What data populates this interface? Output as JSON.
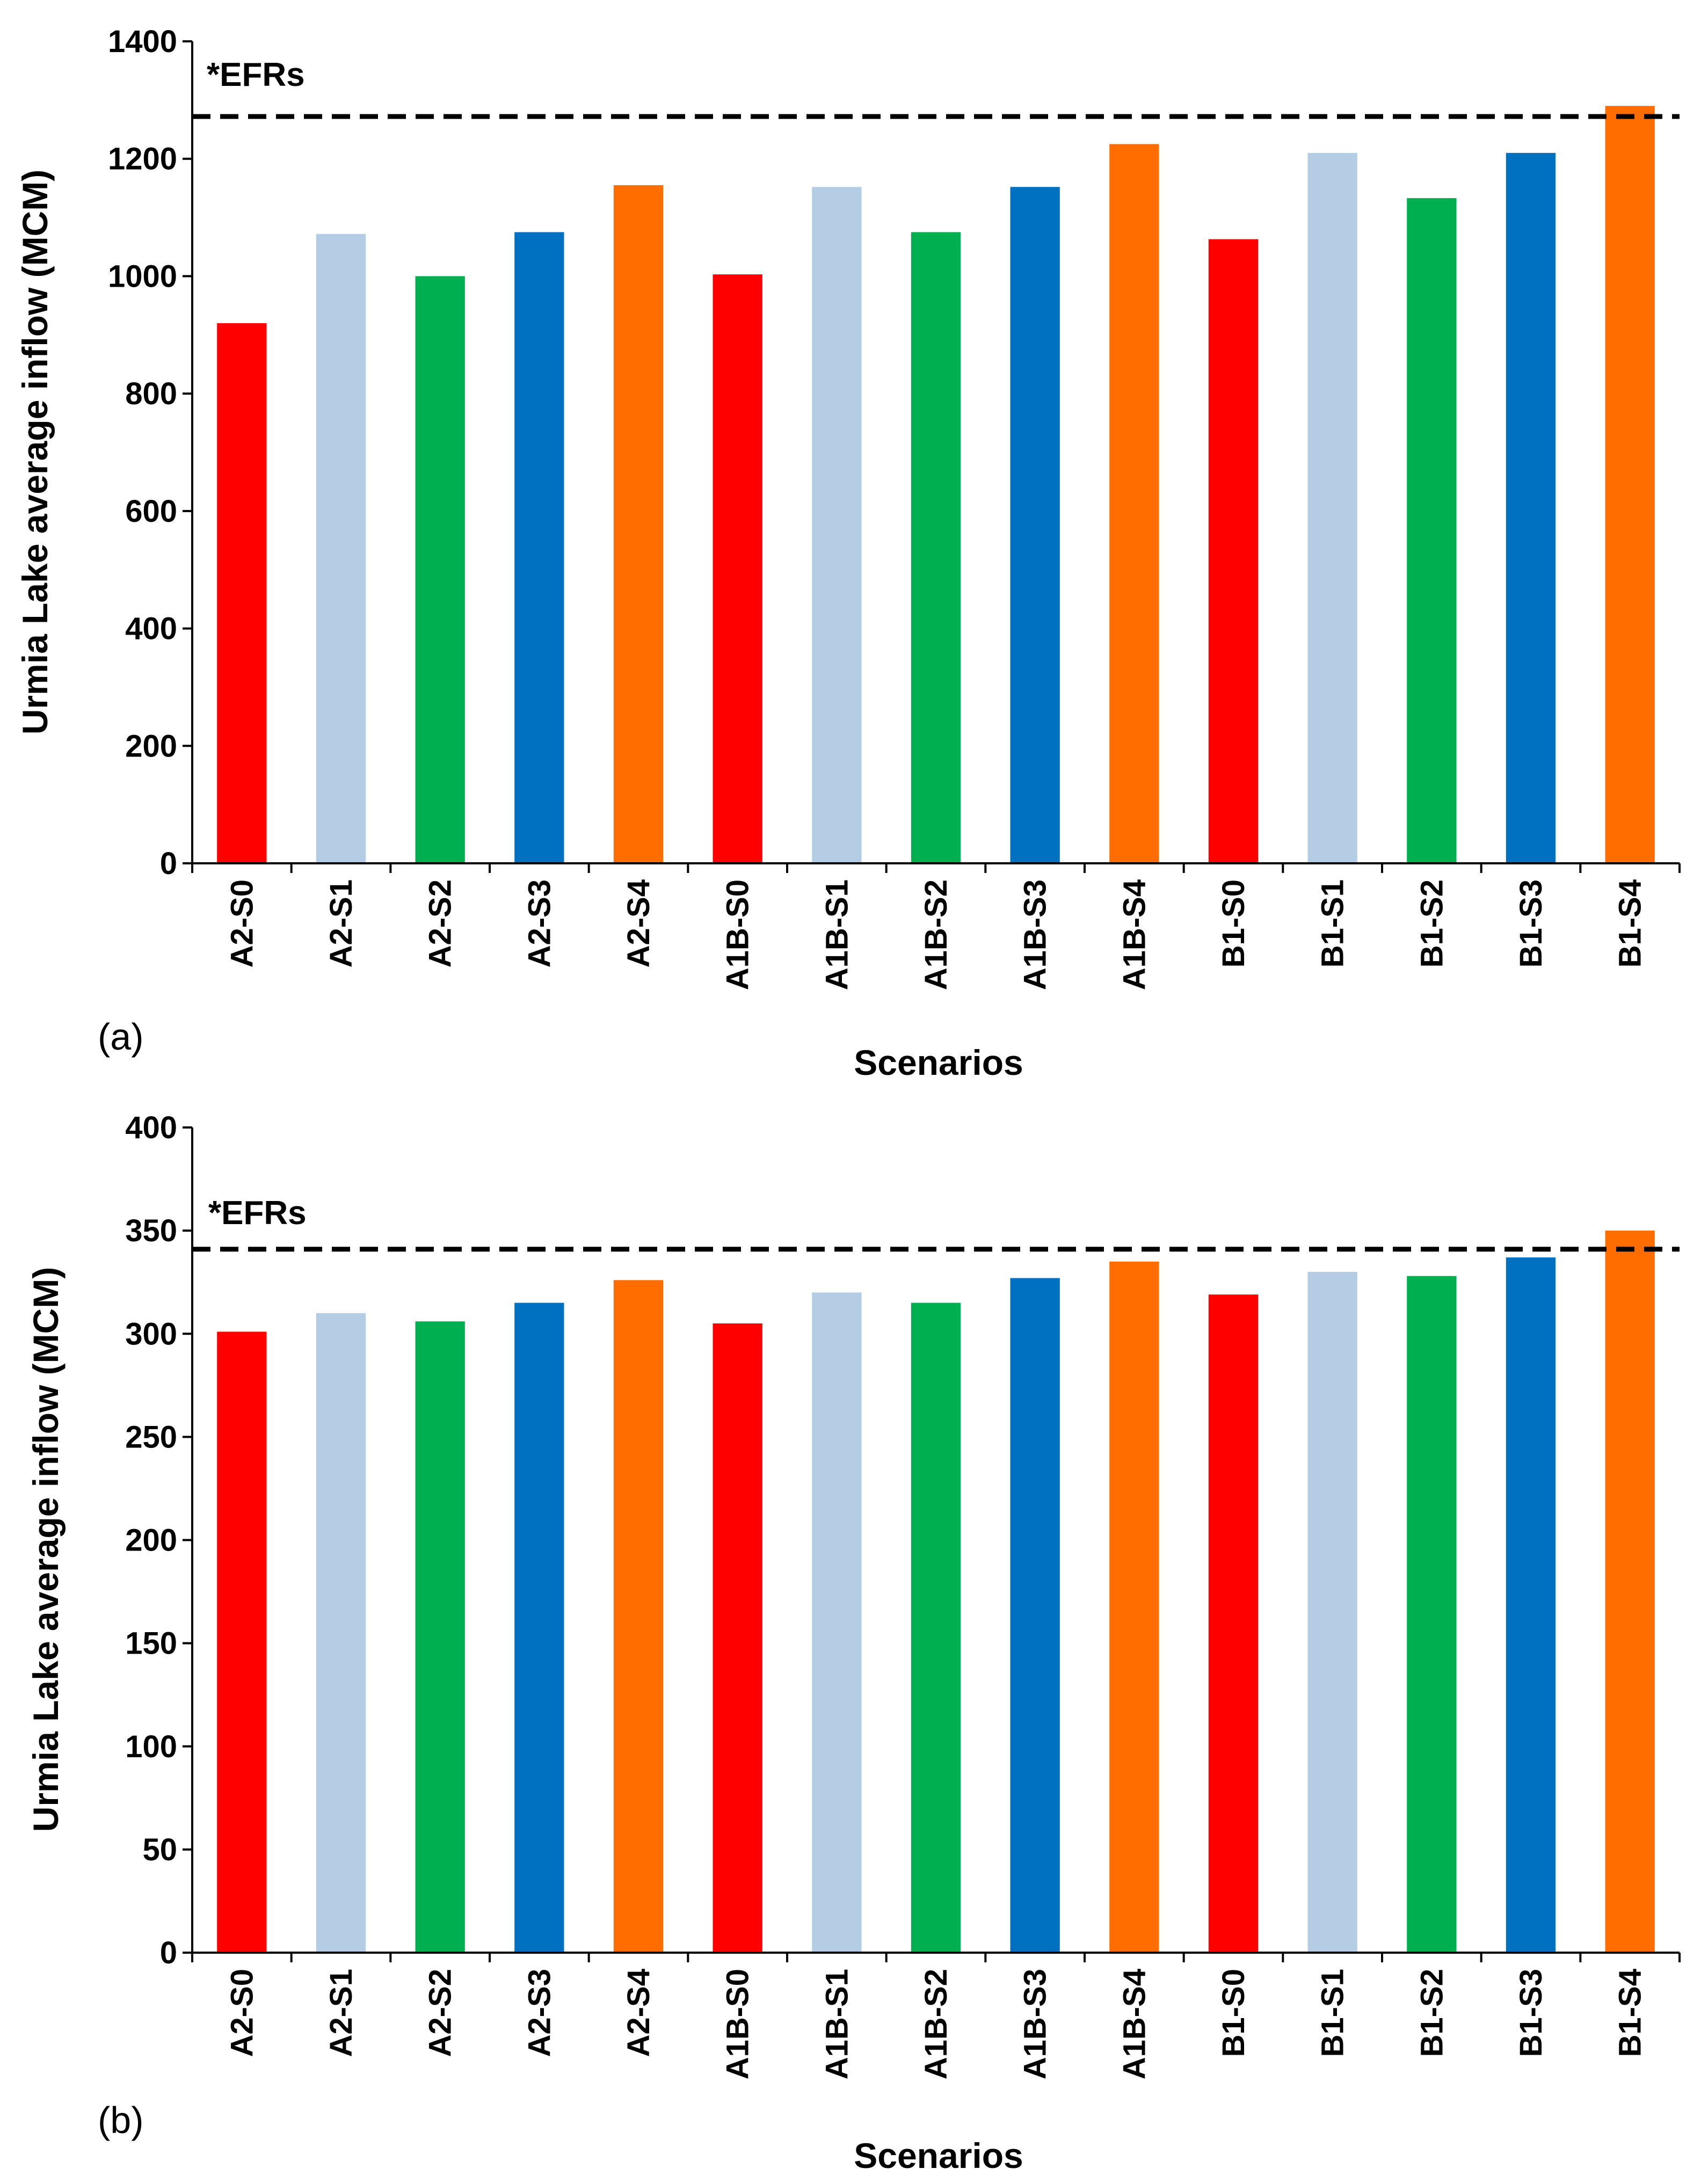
{
  "colors": {
    "S0": "#ff0000",
    "S1": "#b4cde4",
    "S2": "#00b050",
    "S3": "#0070c0",
    "S4": "#ff6d00",
    "efr_line": "#000000"
  },
  "chart_data": [
    {
      "type": "bar",
      "panel_label": "(a)",
      "title": "",
      "xlabel": "Scenarios",
      "ylabel": "Urmia Lake average inflow (MCM)",
      "ylim": [
        0,
        1400
      ],
      "yticks": [
        0,
        200,
        400,
        600,
        800,
        1000,
        1200,
        1400
      ],
      "categories": [
        "A2-S0",
        "A2-S1",
        "A2-S2",
        "A2-S3",
        "A2-S4",
        "A1B-S0",
        "A1B-S1",
        "A1B-S2",
        "A1B-S3",
        "A1B-S4",
        "B1-S0",
        "B1-S1",
        "B1-S2",
        "B1-S3",
        "B1-S4"
      ],
      "values": [
        920,
        1072,
        1000,
        1075,
        1155,
        1003,
        1152,
        1075,
        1152,
        1225,
        1063,
        1210,
        1133,
        1210,
        1290
      ],
      "reference_line": {
        "label": "*EFRs",
        "value": 1272,
        "style": "dashed"
      },
      "grid": false
    },
    {
      "type": "bar",
      "panel_label": "(b)",
      "title": "",
      "xlabel": "Scenarios",
      "ylabel": "Urmia Lake average inflow (MCM)",
      "ylim": [
        0,
        400
      ],
      "yticks": [
        0,
        50,
        100,
        150,
        200,
        250,
        300,
        350,
        400
      ],
      "categories": [
        "A2-S0",
        "A2-S1",
        "A2-S2",
        "A2-S3",
        "A2-S4",
        "A1B-S0",
        "A1B-S1",
        "A1B-S2",
        "A1B-S3",
        "A1B-S4",
        "B1-S0",
        "B1-S1",
        "B1-S2",
        "B1-S3",
        "B1-S4"
      ],
      "values": [
        301,
        310,
        306,
        315,
        326,
        305,
        320,
        315,
        327,
        335,
        319,
        330,
        328,
        337,
        350
      ],
      "reference_line": {
        "label": "*EFRs",
        "value": 341,
        "style": "dashed"
      },
      "grid": false
    }
  ]
}
